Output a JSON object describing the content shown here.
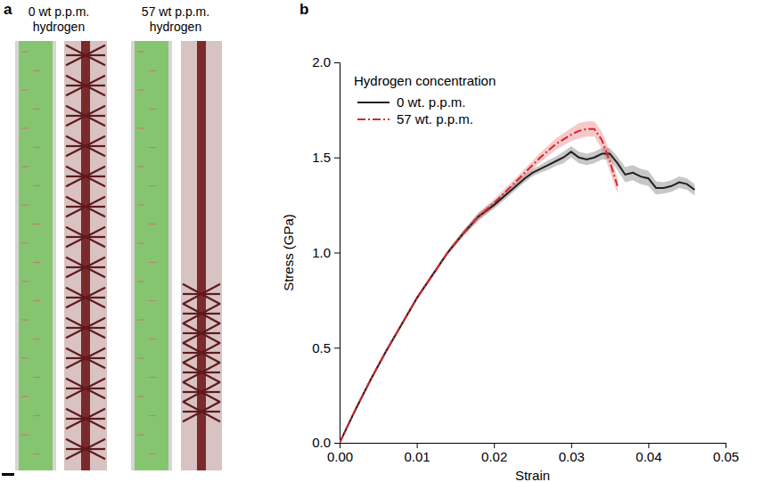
{
  "panel_a": {
    "label": "a",
    "captions": [
      "0 wt p.p.m. hydrogen",
      "57 wt p.p.m. hydrogen"
    ]
  },
  "chart_data": {
    "type": "line",
    "panel_label": "b",
    "x_label": "Strain",
    "y_label": "Stress (GPa)",
    "legend_title": "Hydrogen concentration",
    "legend": "top-left",
    "grid": false,
    "xlim": [
      0,
      0.05
    ],
    "ylim": [
      0,
      2.0
    ],
    "xticks": [
      {
        "value": 0,
        "label": "0.00"
      },
      {
        "value": 0.01,
        "label": "0.01"
      },
      {
        "value": 0.02,
        "label": "0.02"
      },
      {
        "value": 0.03,
        "label": "0.03"
      },
      {
        "value": 0.04,
        "label": "0.04"
      },
      {
        "value": 0.05,
        "label": "0.05"
      }
    ],
    "yticks": [
      {
        "value": 0,
        "label": "0.0"
      },
      0.5,
      {
        "value": 1,
        "label": "1.0"
      },
      1.5,
      {
        "value": 2,
        "label": "2.0"
      }
    ],
    "series": [
      {
        "name": "0 wt. p.p.m.",
        "color": "#231f20",
        "line_style": "solid",
        "x": [
          0,
          0.002,
          0.004,
          0.006,
          0.008,
          0.01,
          0.012,
          0.014,
          0.016,
          0.018,
          0.02,
          0.022,
          0.024,
          0.025,
          0.026,
          0.027,
          0.028,
          0.029,
          0.03,
          0.031,
          0.032,
          0.033,
          0.034,
          0.035,
          0.036,
          0.037,
          0.038,
          0.039,
          0.04,
          0.041,
          0.042,
          0.043,
          0.044,
          0.045,
          0.046
        ],
        "values": [
          0,
          0.17,
          0.33,
          0.48,
          0.62,
          0.76,
          0.88,
          1.0,
          1.1,
          1.19,
          1.25,
          1.32,
          1.39,
          1.42,
          1.44,
          1.46,
          1.48,
          1.5,
          1.53,
          1.5,
          1.49,
          1.5,
          1.52,
          1.52,
          1.47,
          1.41,
          1.42,
          1.4,
          1.39,
          1.34,
          1.34,
          1.35,
          1.37,
          1.36,
          1.33
        ],
        "errors": [
          0,
          0.01,
          0.01,
          0.01,
          0.01,
          0.01,
          0.01,
          0.01,
          0.015,
          0.02,
          0.02,
          0.02,
          0.02,
          0.02,
          0.02,
          0.025,
          0.025,
          0.03,
          0.03,
          0.03,
          0.03,
          0.03,
          0.03,
          0.03,
          0.035,
          0.04,
          0.04,
          0.04,
          0.04,
          0.035,
          0.03,
          0.03,
          0.03,
          0.03,
          0.03
        ]
      },
      {
        "name": "57 wt. p.p.m.",
        "color": "#d7262b",
        "line_style": "dashdot",
        "x": [
          0,
          0.002,
          0.004,
          0.006,
          0.008,
          0.01,
          0.012,
          0.014,
          0.016,
          0.018,
          0.02,
          0.022,
          0.024,
          0.026,
          0.028,
          0.03,
          0.031,
          0.032,
          0.033,
          0.034,
          0.035,
          0.036
        ],
        "values": [
          0,
          0.17,
          0.33,
          0.48,
          0.62,
          0.76,
          0.88,
          1.0,
          1.1,
          1.19,
          1.26,
          1.34,
          1.42,
          1.5,
          1.57,
          1.62,
          1.64,
          1.65,
          1.65,
          1.59,
          1.48,
          1.35
        ],
        "errors": [
          0,
          0.01,
          0.01,
          0.01,
          0.01,
          0.01,
          0.01,
          0.01,
          0.015,
          0.02,
          0.02,
          0.02,
          0.02,
          0.025,
          0.03,
          0.035,
          0.04,
          0.04,
          0.04,
          0.045,
          0.05,
          0.04
        ]
      }
    ]
  }
}
